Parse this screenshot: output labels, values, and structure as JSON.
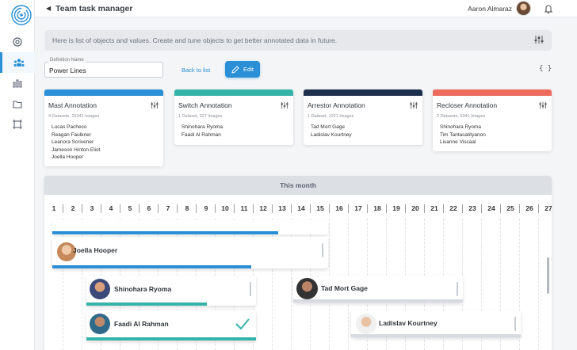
{
  "app": {
    "title": "Team task manager"
  },
  "user": {
    "name": "Aaron Almaraz"
  },
  "hint": {
    "text": "Here is list of objects and values. Create and tune objects to get better annotated data in future."
  },
  "definition": {
    "label": "Definition Name",
    "value": "Power Lines",
    "back_label": "Back to list",
    "edit_label": "Edit",
    "json_label": "{ }"
  },
  "cards": [
    {
      "title": "Mast Annotation",
      "subtitle": "4 Datasets, 15341 Images",
      "color": "#2a8fd6",
      "people": [
        "Lucas Pacheco",
        "Reagan Faulkner",
        "Leanora Scrivener",
        "Jameson Hinton Eliot",
        "Joella Hooper"
      ]
    },
    {
      "title": "Switch Annotation",
      "subtitle": "1 Dataset, 327 Images",
      "color": "#36b3a8",
      "people": [
        "Shinohara Ryoma",
        "Faadi Al Rahman"
      ]
    },
    {
      "title": "Arrestor Annotation",
      "subtitle": "1 Dataset, 1221 Images",
      "color": "#1e2f4d",
      "people": [
        "Tad Mort Gage",
        "Ladislav Kourtney"
      ]
    },
    {
      "title": "Recloser Annotation",
      "subtitle": "2 Datasets, 5341 Images",
      "color": "#ec6b5d",
      "people": [
        "Shinohara Ryoma",
        "Tim Tantasatityanon",
        "Lisanne Viscaal"
      ]
    }
  ],
  "timeline": {
    "header": "This month",
    "days": [
      "1",
      "2",
      "3",
      "4",
      "5",
      "6",
      "7",
      "8",
      "9",
      "10",
      "11",
      "12",
      "13",
      "14",
      "15",
      "16",
      "17",
      "18",
      "19",
      "20",
      "21",
      "22",
      "23",
      "24",
      "25",
      "26",
      "27"
    ],
    "tasks": [
      {
        "name": "Joella Hooper",
        "progress": 0.72,
        "color": "#2a8fd6"
      },
      {
        "name": "Shinohara Ryoma",
        "progress": 0.71,
        "color": "#36b3a8"
      },
      {
        "name": "Faadi Al Rahman",
        "progress": 1.0,
        "color": "#36b3a8",
        "done": true
      },
      {
        "name": "Tad Mort Gage",
        "progress": 1.0,
        "color": "#d7dbe0"
      },
      {
        "name": "Ladislav Kourtney",
        "progress": 1.0,
        "color": "#d7dbe0"
      }
    ]
  }
}
